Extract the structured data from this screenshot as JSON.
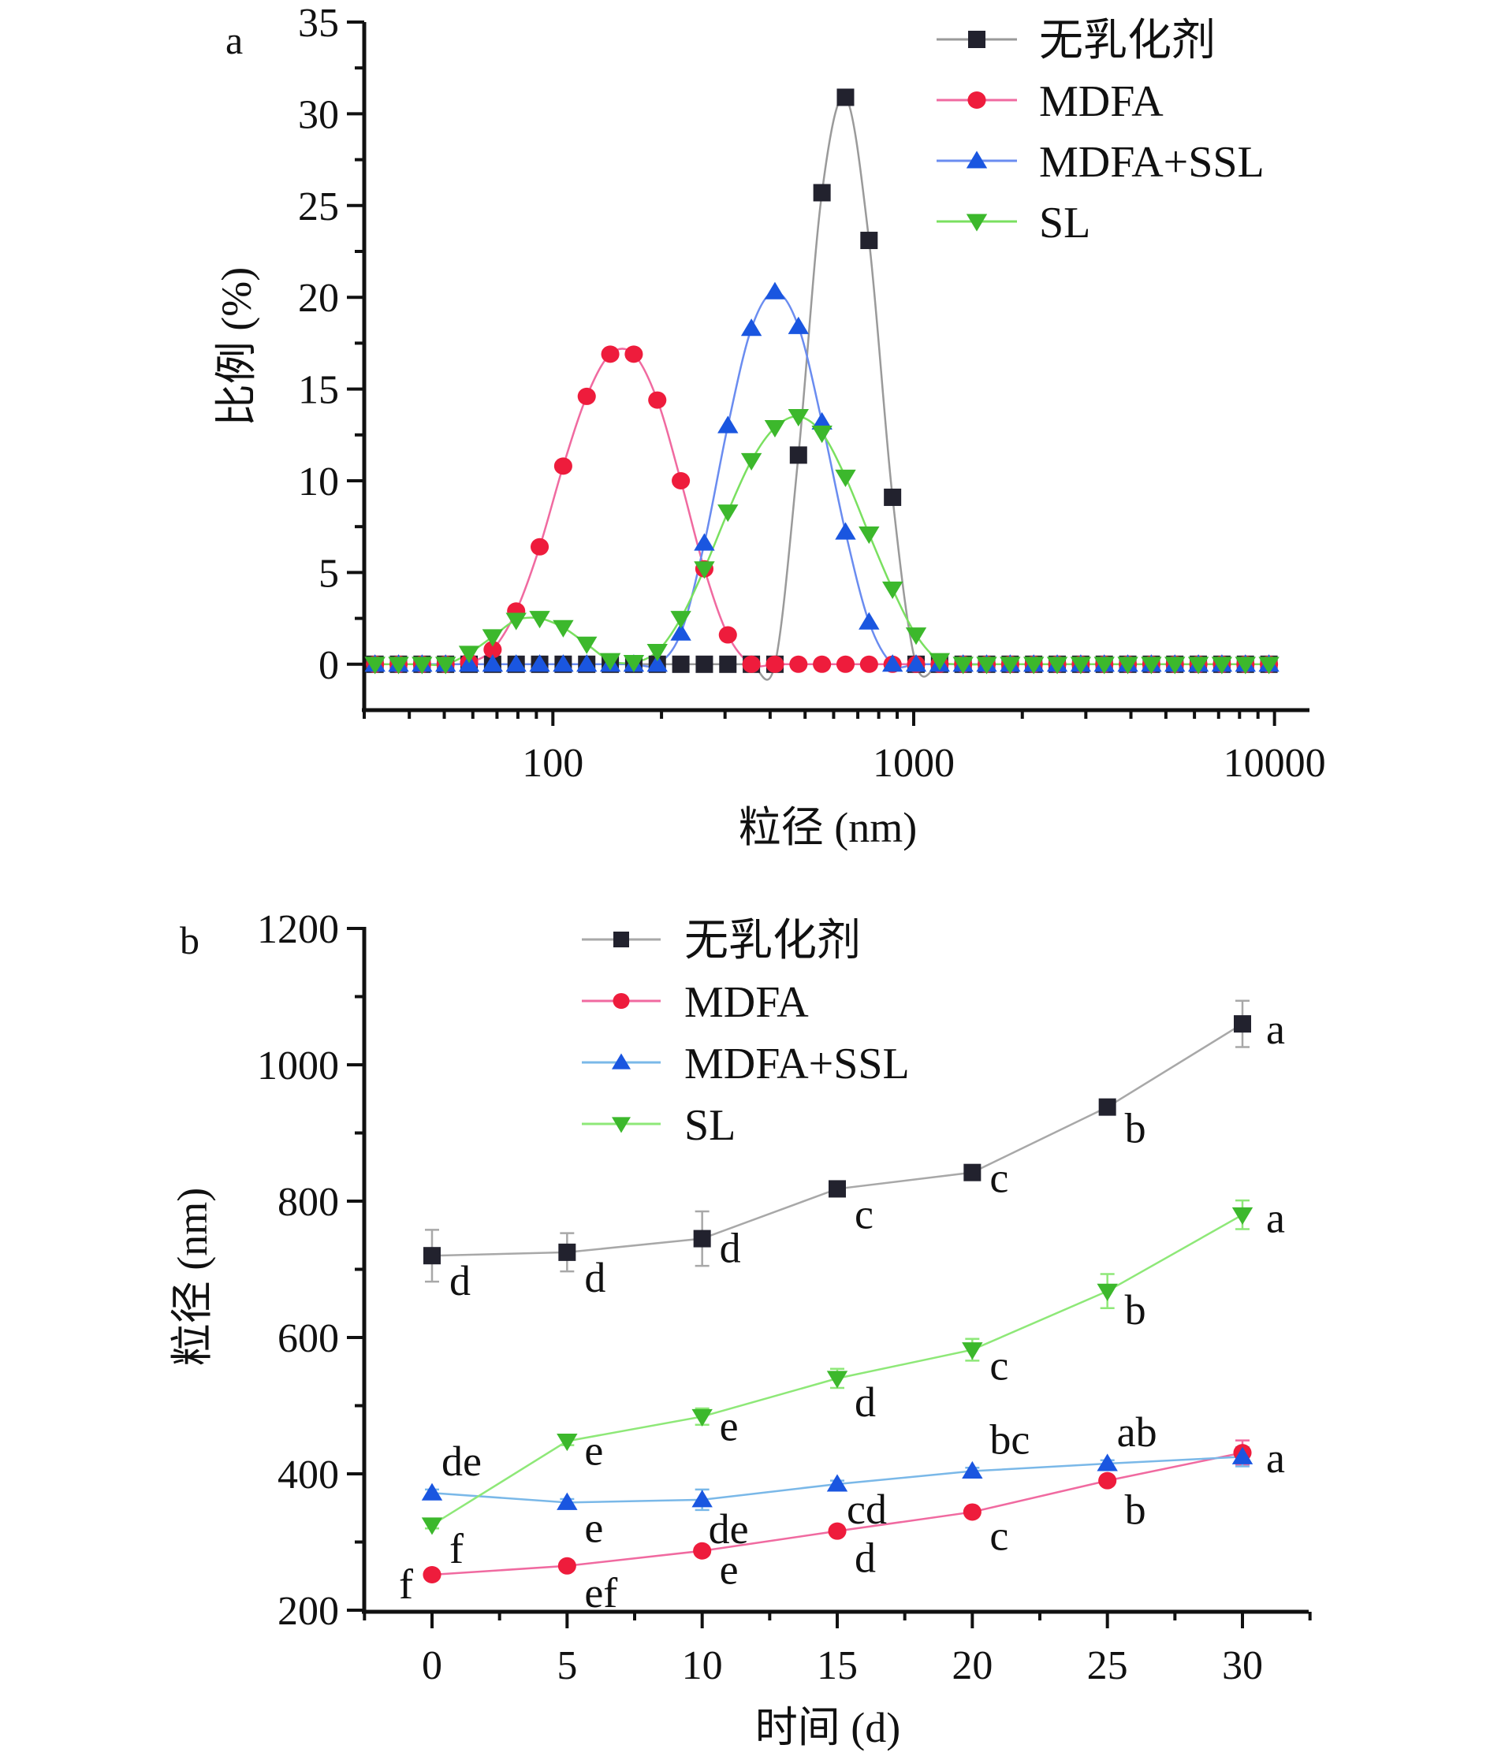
{
  "chart_data": [
    {
      "panel": "a",
      "type": "line",
      "xscale": "log",
      "title": "",
      "xlabel": "粒径 (nm)",
      "ylabel": "比例 (%)",
      "xlim": [
        30,
        12500
      ],
      "ylim": [
        -2.5,
        35
      ],
      "xticks": [
        100,
        1000,
        10000
      ],
      "xtick_labels": [
        "100",
        "1000",
        "10000"
      ],
      "yticks": [
        0,
        5,
        10,
        15,
        20,
        25,
        30,
        35
      ],
      "ytick_labels": [
        "0",
        "5",
        "10",
        "15",
        "20",
        "25",
        "30",
        "35"
      ],
      "grid": false,
      "legend_position": "top-right",
      "x_log10_start": 1.507,
      "x_log10_step": 0.0652,
      "n_points": 39,
      "series": [
        {
          "name": "无乳化剂",
          "marker": "square",
          "color": "#22222e",
          "line_color": "#9a9a9a",
          "values": [
            0,
            0,
            0,
            0,
            0,
            0,
            0,
            0,
            0,
            0,
            0,
            0,
            0,
            0,
            0,
            0,
            0,
            0,
            11.4,
            25.7,
            30.9,
            23.1,
            9.1,
            0,
            0,
            0,
            0,
            0,
            0,
            0,
            0,
            0,
            0,
            0,
            0,
            0,
            0,
            0,
            0
          ]
        },
        {
          "name": "MDFA",
          "marker": "circle",
          "color": "#ee1c3c",
          "line_color": "#f06aa0",
          "values": [
            0,
            0,
            0,
            0,
            0.1,
            0.8,
            2.9,
            6.4,
            10.8,
            14.6,
            16.9,
            16.9,
            14.4,
            10.0,
            5.2,
            1.6,
            0,
            0,
            0,
            0,
            0,
            0,
            0,
            0,
            0,
            0,
            0,
            0,
            0,
            0,
            0,
            0,
            0,
            0,
            0,
            0,
            0,
            0,
            0
          ]
        },
        {
          "name": "MDFA+SSL",
          "marker": "triangle-up",
          "color": "#1a56e0",
          "line_color": "#6a8cf0",
          "values": [
            0,
            0,
            0,
            0,
            0,
            0,
            0,
            0,
            0,
            0,
            0,
            0,
            0,
            1.7,
            6.6,
            13.0,
            18.3,
            20.3,
            18.4,
            13.2,
            7.2,
            2.3,
            0,
            0,
            0,
            0,
            0,
            0,
            0,
            0,
            0,
            0,
            0,
            0,
            0,
            0,
            0,
            0,
            0
          ]
        },
        {
          "name": "SL",
          "marker": "triangle-down",
          "color": "#3cb82c",
          "line_color": "#7ae060",
          "values": [
            0,
            0,
            0,
            0,
            0.6,
            1.5,
            2.4,
            2.5,
            2.0,
            1.1,
            0.2,
            0.1,
            0.7,
            2.5,
            5.2,
            8.3,
            11.1,
            12.9,
            13.5,
            12.6,
            10.2,
            7.1,
            4.1,
            1.6,
            0.2,
            0,
            0,
            0,
            0,
            0,
            0,
            0,
            0,
            0,
            0,
            0,
            0,
            0,
            0
          ]
        }
      ]
    },
    {
      "panel": "b",
      "type": "line",
      "title": "",
      "xlabel": "时间 (d)",
      "ylabel": "粒径 (nm)",
      "x": [
        0,
        5,
        10,
        15,
        20,
        25,
        30
      ],
      "xlim": [
        -2.5,
        32.5
      ],
      "ylim": [
        200,
        1200
      ],
      "xticks": [
        0,
        5,
        10,
        15,
        20,
        25,
        30
      ],
      "xtick_labels": [
        "0",
        "5",
        "10",
        "15",
        "20",
        "25",
        "30"
      ],
      "yticks": [
        200,
        400,
        600,
        800,
        1000,
        1200
      ],
      "ytick_labels": [
        "200",
        "400",
        "600",
        "800",
        "1000",
        "1200"
      ],
      "grid": false,
      "legend_position": "top-center",
      "series": [
        {
          "name": "无乳化剂",
          "marker": "square",
          "color": "#22222e",
          "line_color": "#a8a8a8",
          "values": [
            720,
            725,
            745,
            818,
            842,
            938,
            1060
          ],
          "errors": [
            38,
            28,
            40,
            6,
            6,
            8,
            34
          ],
          "letters": [
            "d",
            "d",
            "d",
            "c",
            "c",
            "b",
            "a"
          ]
        },
        {
          "name": "MDFA",
          "marker": "circle",
          "color": "#ee1c3c",
          "line_color": "#f06aa0",
          "values": [
            252,
            265,
            287,
            316,
            344,
            390,
            431
          ],
          "errors": [
            4,
            4,
            5,
            5,
            5,
            6,
            18
          ],
          "letters": [
            "f",
            "ef",
            "e",
            "d",
            "c",
            "b",
            "a"
          ]
        },
        {
          "name": "MDFA+SSL",
          "marker": "triangle-up",
          "color": "#1a56e0",
          "line_color": "#7ab8e8",
          "values": [
            372,
            358,
            362,
            385,
            404,
            415,
            425
          ],
          "errors": [
            5,
            5,
            15,
            5,
            5,
            5,
            14
          ],
          "letters": [
            "de",
            "e",
            "de",
            "cd",
            "bc",
            "ab",
            ""
          ]
        },
        {
          "name": "SL",
          "marker": "triangle-down",
          "color": "#3cb82c",
          "line_color": "#8ee878",
          "values": [
            325,
            448,
            484,
            540,
            582,
            668,
            780
          ],
          "errors": [
            5,
            6,
            12,
            14,
            16,
            25,
            21
          ],
          "letters": [
            "f",
            "e",
            "e",
            "d",
            "c",
            "b",
            "a"
          ]
        }
      ]
    }
  ],
  "panel_labels": [
    "a",
    "b"
  ]
}
